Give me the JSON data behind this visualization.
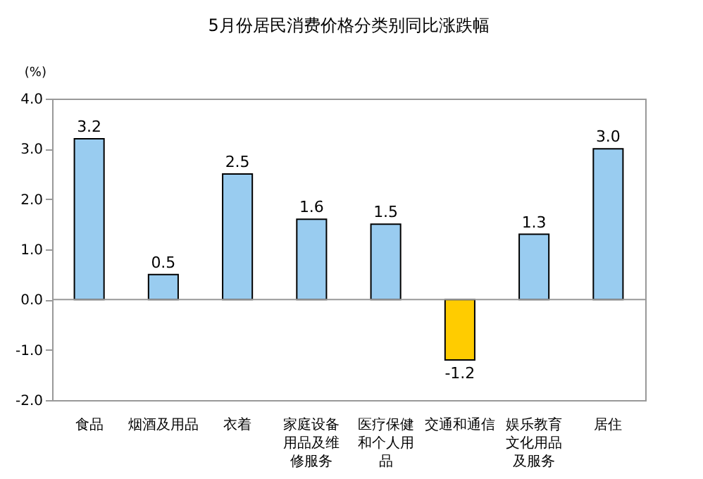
{
  "chart_data": {
    "type": "bar",
    "title": "5月份居民消费价格分类别同比涨跌幅",
    "ylabel": "(%)",
    "categories": [
      "食品",
      "烟酒及用品",
      "衣着",
      "家庭设备用品及维修服务",
      "医疗保健和个人用品",
      "交通和通信",
      "娱乐教育文化用品及服务",
      "居住"
    ],
    "values": [
      3.2,
      0.5,
      2.5,
      1.6,
      1.5,
      -1.2,
      1.3,
      3.0
    ],
    "value_labels": [
      "3.2",
      "0.5",
      "2.5",
      "1.6",
      "1.5",
      "-1.2",
      "1.3",
      "3.0"
    ],
    "colors": [
      "#99ccf0",
      "#99ccf0",
      "#99ccf0",
      "#99ccf0",
      "#99ccf0",
      "#ffcc00",
      "#99ccf0",
      "#99ccf0"
    ],
    "ylim": [
      -2.0,
      4.0
    ],
    "yticks": [
      {
        "value": -2,
        "label": "-2.0"
      },
      {
        "value": -1,
        "label": "-1.0"
      },
      {
        "value": 0,
        "label": "0.0"
      },
      {
        "value": 1,
        "label": "1.0"
      },
      {
        "value": 2,
        "label": "2.0"
      },
      {
        "value": 3,
        "label": "3.0"
      },
      {
        "value": 4,
        "label": "4.0"
      }
    ],
    "ref_lines": [
      {
        "axis": "y",
        "value": 0,
        "color": "#999999"
      }
    ],
    "grid": false
  }
}
